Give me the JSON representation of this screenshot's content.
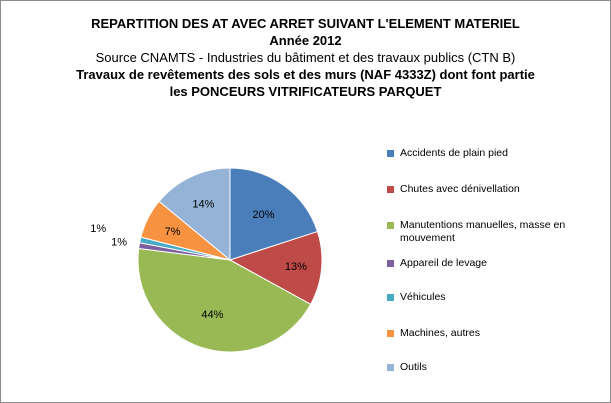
{
  "chart_data": {
    "type": "pie",
    "title_lines": [
      "REPARTITION DES AT AVEC ARRET SUIVANT L'ELEMENT MATERIEL",
      "Année 2012",
      "Source CNAMTS -  Industries du bâtiment et des travaux publics (CTN B)",
      "Travaux de revêtements des sols et des murs (NAF 4333Z) dont font partie les PONCEURS VITRIFICATEURS PARQUET"
    ],
    "legend_position": "right",
    "slices": [
      {
        "label": "Accidents de plain pied",
        "value": 20,
        "display": "20%",
        "color": "#4a7ebb"
      },
      {
        "label": "Chutes avec dénivellation",
        "value": 13,
        "display": "13%",
        "color": "#be4b48"
      },
      {
        "label": "Manutentions manuelles, masse en mouvement",
        "value": 44,
        "display": "44%",
        "color": "#98b954"
      },
      {
        "label": "Appareil de levage",
        "value": 1,
        "display": "1%",
        "color": "#7d5fa0"
      },
      {
        "label": "Véhicules",
        "value": 1,
        "display": "1%",
        "color": "#46aac5"
      },
      {
        "label": "Machines, autres",
        "value": 7,
        "display": "7%",
        "color": "#f69240"
      },
      {
        "label": "Outils",
        "value": 14,
        "display": "14%",
        "color": "#95b3d7"
      }
    ]
  }
}
